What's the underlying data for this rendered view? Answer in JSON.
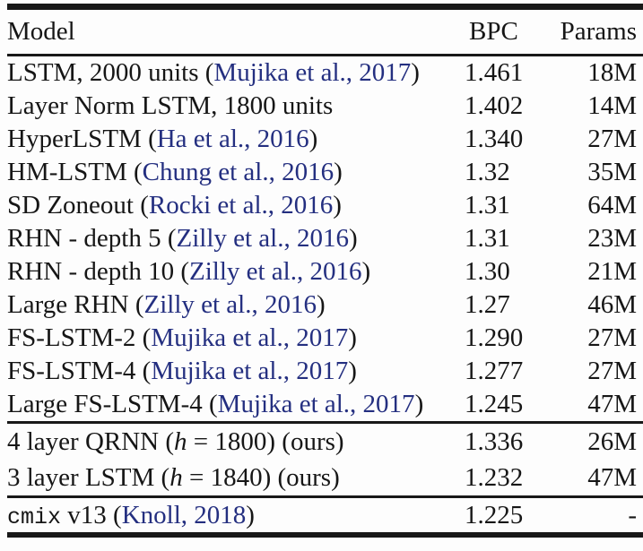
{
  "colors": {
    "text": "#161616",
    "citation_link": "#242f80",
    "rule": "#181818",
    "background": "#fdfdfd"
  },
  "table": {
    "headers": {
      "model": "Model",
      "bpc": "BPC",
      "params": "Params"
    },
    "rows": [
      {
        "mono": "",
        "pre": "LSTM, 2000 units (",
        "math": "",
        "mid": "",
        "cite": "Mujika et al., 2017",
        "post": ")",
        "bpc": "1.461",
        "params": "18M"
      },
      {
        "mono": "",
        "pre": "Layer Norm LSTM, 1800 units",
        "math": "",
        "mid": "",
        "cite": "",
        "post": "",
        "bpc": "1.402",
        "params": "14M"
      },
      {
        "mono": "",
        "pre": "HyperLSTM (",
        "math": "",
        "mid": "",
        "cite": "Ha et al., 2016",
        "post": ")",
        "bpc": "1.340",
        "params": "27M"
      },
      {
        "mono": "",
        "pre": "HM-LSTM (",
        "math": "",
        "mid": "",
        "cite": "Chung et al., 2016",
        "post": ")",
        "bpc": "1.32",
        "params": "35M"
      },
      {
        "mono": "",
        "pre": "SD Zoneout (",
        "math": "",
        "mid": "",
        "cite": "Rocki et al., 2016",
        "post": ")",
        "bpc": "1.31",
        "params": "64M"
      },
      {
        "mono": "",
        "pre": "RHN - depth 5 (",
        "math": "",
        "mid": "",
        "cite": "Zilly et al., 2016",
        "post": ")",
        "bpc": "1.31",
        "params": "23M"
      },
      {
        "mono": "",
        "pre": "RHN - depth 10 (",
        "math": "",
        "mid": "",
        "cite": "Zilly et al., 2016",
        "post": ")",
        "bpc": "1.30",
        "params": "21M"
      },
      {
        "mono": "",
        "pre": "Large RHN (",
        "math": "",
        "mid": "",
        "cite": "Zilly et al., 2016",
        "post": ")",
        "bpc": "1.27",
        "params": "46M"
      },
      {
        "mono": "",
        "pre": "FS-LSTM-2 (",
        "math": "",
        "mid": "",
        "cite": "Mujika et al., 2017",
        "post": ")",
        "bpc": "1.290",
        "params": "27M"
      },
      {
        "mono": "",
        "pre": "FS-LSTM-4 (",
        "math": "",
        "mid": "",
        "cite": "Mujika et al., 2017",
        "post": ")",
        "bpc": "1.277",
        "params": "27M"
      },
      {
        "mono": "",
        "pre": "Large FS-LSTM-4 (",
        "math": "",
        "mid": "",
        "cite": "Mujika et al., 2017",
        "post": ")",
        "bpc": "1.245",
        "params": "47M"
      },
      {
        "mono": "",
        "pre": "4 layer QRNN (",
        "math": "h",
        "mid": " = 1800) (ours)",
        "cite": "",
        "post": "",
        "bpc": "1.336",
        "params": "26M"
      },
      {
        "mono": "",
        "pre": "3 layer LSTM (",
        "math": "h",
        "mid": " = 1840) (ours)",
        "cite": "",
        "post": "",
        "bpc": "1.232",
        "params": "47M"
      },
      {
        "mono": "cmix",
        "pre": " v13 (",
        "math": "",
        "mid": "",
        "cite": "Knoll, 2018",
        "post": ")",
        "bpc": "1.225",
        "params": "-"
      }
    ]
  }
}
